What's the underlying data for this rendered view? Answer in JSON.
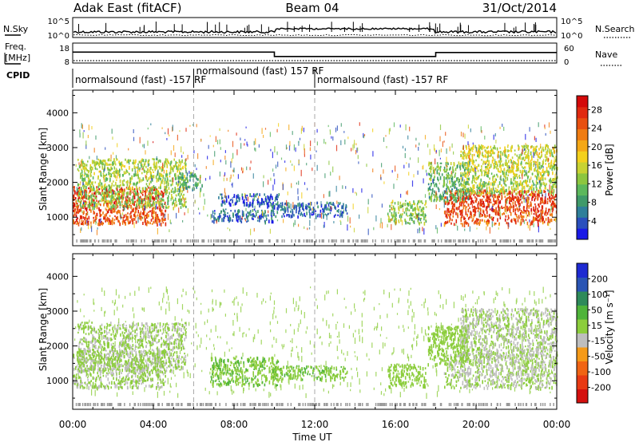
{
  "header": {
    "station": "Adak East (fitACF)",
    "beam": "Beam 04",
    "date": "31/Oct/2014"
  },
  "top_panels": {
    "nsky_label": "N.Sky",
    "nsky_ticks": [
      "10^5",
      "10^0"
    ],
    "nsearch_label": "N.Search",
    "nsearch_ticks": [
      "10^5",
      "10^0"
    ],
    "freq_label_line1": "Freq.",
    "freq_label_line2": "[MHz]",
    "freq_ticks": [
      "18",
      "8"
    ],
    "nave_label": "Nave",
    "nave_ticks": [
      "60",
      "0"
    ],
    "cpid_label": "CPID",
    "cpid_segments": [
      {
        "text": "normalsound (fast) -157 RF",
        "start_hour": 0,
        "end_hour": 6
      },
      {
        "text": "normalsound (fast) 157 RF",
        "start_hour": 6,
        "end_hour": 12
      },
      {
        "text": "normalsound (fast) -157 RF",
        "start_hour": 12,
        "end_hour": 24
      }
    ],
    "freq_segments": [
      {
        "start_hour": 0,
        "end_hour": 10,
        "value_mhz": 13.5
      },
      {
        "start_hour": 10,
        "end_hour": 18,
        "value_mhz": 11.3
      },
      {
        "start_hour": 18,
        "end_hour": 24,
        "value_mhz": 13.3
      }
    ]
  },
  "chart_data": [
    {
      "type": "heatmap",
      "name": "power",
      "ylabel": "Slant Range [km]",
      "ylim": [
        180,
        4650
      ],
      "yticks": [
        "1000",
        "2000",
        "3000",
        "4000"
      ],
      "colorbar": {
        "label": "Power [dB]",
        "ticks": [
          "4",
          "8",
          "12",
          "16",
          "20",
          "24",
          "28"
        ],
        "range": [
          0,
          31
        ],
        "colors": [
          "#1a1ae6",
          "#2a4fbd",
          "#2f7f9a",
          "#3f9a6a",
          "#5cb85c",
          "#8cc63f",
          "#c8d232",
          "#f3d01c",
          "#f5a816",
          "#f07c12",
          "#e85010",
          "#e02a10",
          "#d40a0a"
        ]
      },
      "echo_regions": [
        {
          "start_hour": 0,
          "end_hour": 4.6,
          "range_low": 820,
          "range_high": 1900,
          "level": 27
        },
        {
          "start_hour": 0.2,
          "end_hour": 5.6,
          "range_low": 1300,
          "range_high": 2700,
          "level": 15
        },
        {
          "start_hour": 5.2,
          "end_hour": 6.4,
          "range_low": 1800,
          "range_high": 2300,
          "level": 10
        },
        {
          "start_hour": 6.8,
          "end_hour": 10.0,
          "range_low": 900,
          "range_high": 1250,
          "level": 6
        },
        {
          "start_hour": 7.2,
          "end_hour": 10.2,
          "range_low": 1350,
          "range_high": 1700,
          "level": 5
        },
        {
          "start_hour": 9.8,
          "end_hour": 13.6,
          "range_low": 1050,
          "range_high": 1450,
          "level": 6
        },
        {
          "start_hour": 15.6,
          "end_hour": 17.5,
          "range_low": 850,
          "range_high": 1500,
          "level": 14
        },
        {
          "start_hour": 18.4,
          "end_hour": 24,
          "range_low": 820,
          "range_high": 1800,
          "level": 27
        },
        {
          "start_hour": 17.6,
          "end_hour": 19.6,
          "range_low": 1500,
          "range_high": 2600,
          "level": 12
        },
        {
          "start_hour": 19.2,
          "end_hour": 24,
          "range_low": 1700,
          "range_high": 3100,
          "level": 16
        }
      ]
    },
    {
      "type": "heatmap",
      "name": "velocity",
      "ylabel": "Slant Range [km]",
      "xlabel": "Time UT",
      "ylim": [
        180,
        4650
      ],
      "yticks": [
        "1000",
        "2000",
        "3000",
        "4000"
      ],
      "xticks": [
        "00:00",
        "04:00",
        "08:00",
        "12:00",
        "16:00",
        "20:00",
        "00:00"
      ],
      "xrange_hours": [
        0,
        24
      ],
      "colorbar": {
        "label": "Velocity [m s⁻¹]",
        "ticks": [
          "200",
          "100",
          "50",
          "15",
          "-15",
          "-50",
          "-100",
          "-200"
        ],
        "range": [
          -250,
          250
        ],
        "colors": [
          "#d4100e",
          "#e83a14",
          "#f06414",
          "#f59a18",
          "#bebebe",
          "#8ccd3c",
          "#4fb43a",
          "#2e8a5a",
          "#2a55b4",
          "#1e2ad2"
        ]
      },
      "echo_regions": [
        {
          "start_hour": 0,
          "end_hour": 4.6,
          "range_low": 820,
          "range_high": 1900,
          "level": 0
        },
        {
          "start_hour": 0.2,
          "end_hour": 5.6,
          "range_low": 1300,
          "range_high": 2700,
          "level": 0
        },
        {
          "start_hour": 6.8,
          "end_hour": 10.2,
          "range_low": 900,
          "range_high": 1700,
          "level": 40
        },
        {
          "start_hour": 9.8,
          "end_hour": 13.6,
          "range_low": 1050,
          "range_high": 1450,
          "level": 40
        },
        {
          "start_hour": 15.6,
          "end_hour": 17.5,
          "range_low": 850,
          "range_high": 1500,
          "level": 20
        },
        {
          "start_hour": 18.4,
          "end_hour": 24,
          "range_low": 820,
          "range_high": 1800,
          "level": 0
        },
        {
          "start_hour": 17.6,
          "end_hour": 19.6,
          "range_low": 1500,
          "range_high": 2600,
          "level": 30
        },
        {
          "start_hour": 19.2,
          "end_hour": 24,
          "range_low": 1700,
          "range_high": 3100,
          "level": 0
        }
      ]
    }
  ]
}
